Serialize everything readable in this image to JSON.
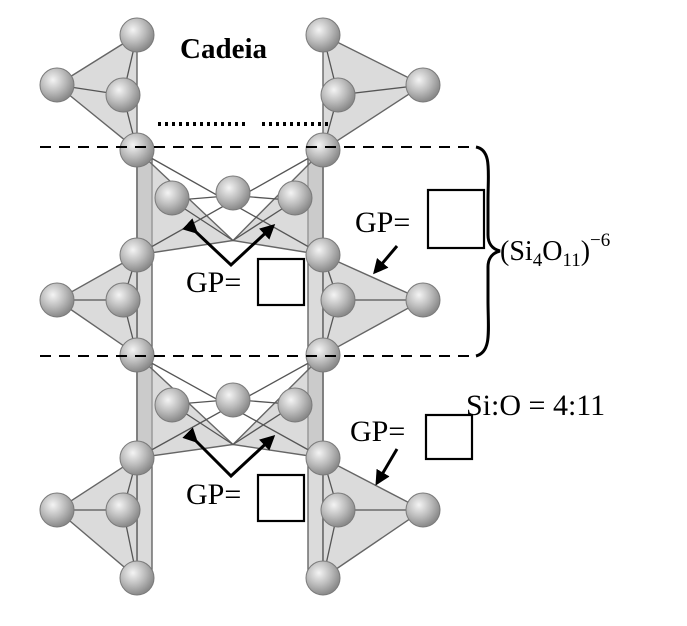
{
  "title": "Cadeia",
  "gp_label": "GP=",
  "formula": {
    "prefix": "(Si",
    "sub1": "4",
    "mid": "O",
    "sub2": "11",
    "close": ")",
    "charge": "−6"
  },
  "ratio": "Si:O = 4:11",
  "colors": {
    "atom": "#bdbdbd",
    "tetra_fill": "#bdbdbd",
    "line": "#000000"
  }
}
